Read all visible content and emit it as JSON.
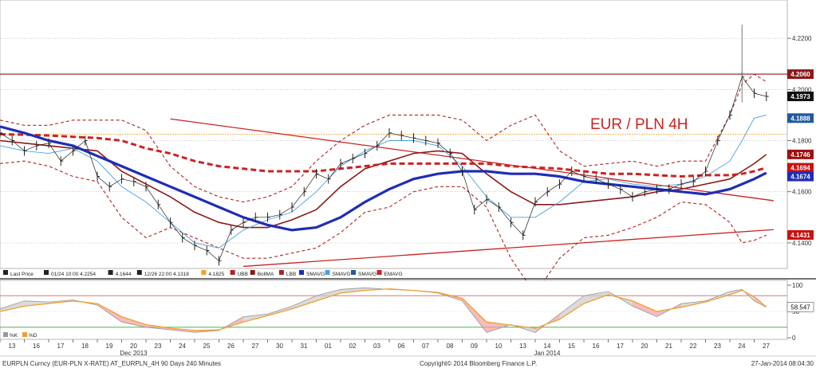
{
  "footer": {
    "left": "EURPLN Curncy (EUR-PLN X-RATE) AT_EURPLN_4H 90 Days 240 Minutes",
    "center": "Copyright© 2014 Bloomberg Finance L.P.",
    "right": "27-Jan-2014 08:04:30"
  },
  "chart_data": [
    {
      "type": "line",
      "panel": "price",
      "annotation": "EUR / PLN 4H",
      "ylim": [
        4.13,
        4.235
      ],
      "y_ticks": [
        "4.2200",
        "4.2000",
        "4.1800",
        "4.1600",
        "4.1400"
      ],
      "y_tick_values": [
        4.22,
        4.2,
        4.18,
        4.16,
        4.14
      ],
      "x_ticks": [
        "13",
        "16",
        "17",
        "18",
        "19",
        "20",
        "23",
        "24",
        "25",
        "26",
        "27",
        "30",
        "31",
        "01",
        "02",
        "03",
        "06",
        "07",
        "08",
        "09",
        "10",
        "13",
        "14",
        "15",
        "16",
        "17",
        "20",
        "21",
        "22",
        "23",
        "24",
        "27"
      ],
      "month_labels": [
        {
          "label": "Dec 2013",
          "at": "20"
        },
        {
          "label": "Jan 2014",
          "at": "14"
        }
      ],
      "legend": [
        {
          "label": "Last Price",
          "color": "#222222"
        },
        {
          "label": "01/24 10:00 4.2254",
          "color": "#222222"
        },
        {
          "label": "4.1644",
          "color": "#222222"
        },
        {
          "label": "12/26 22:00 4.1318",
          "color": "#222222"
        },
        {
          "label": "4.1825",
          "color": "#f0a030"
        },
        {
          "label": "UBB",
          "color": "#b22222"
        },
        {
          "label": "BollMA",
          "color": "#8b1a1a"
        },
        {
          "label": "LBB",
          "color": "#b22222"
        },
        {
          "label": "SMAVG",
          "color": "#1f2db5"
        },
        {
          "label": "SMAVG",
          "color": "#4aa0e0"
        },
        {
          "label": "SMAVG",
          "color": "#1f5aa0"
        },
        {
          "label": "EMAVG",
          "color": "#cc2222"
        }
      ],
      "price_labels": [
        {
          "text": "4.2060",
          "value": 4.206,
          "color": "#8b1a1a"
        },
        {
          "text": "4.1973",
          "value": 4.1973,
          "color": "#111111"
        },
        {
          "text": "4.1888",
          "value": 4.1888,
          "color": "#1f5aa0"
        },
        {
          "text": "4.1746",
          "value": 4.1746,
          "color": "#a01010"
        },
        {
          "text": "4.1694",
          "value": 4.1694,
          "color": "#cc1111"
        },
        {
          "text": "4.1674",
          "value": 4.1674,
          "color": "#1f2db5"
        },
        {
          "text": "4.1431",
          "value": 4.1431,
          "color": "#cc1111"
        }
      ],
      "horizontal_lines": [
        {
          "value": 4.206,
          "color": "#8b1a1a"
        },
        {
          "value": 4.1825,
          "color": "#f0a030"
        }
      ],
      "trendlines": [
        {
          "from_x": 7.0,
          "from_y": 4.1885,
          "to_x": 31.8,
          "to_y": 4.1565,
          "color": "#cc2222"
        },
        {
          "from_x": 10.0,
          "from_y": 4.1308,
          "to_x": 31.8,
          "to_y": 4.1452,
          "color": "#cc2222"
        }
      ],
      "series": [
        {
          "name": "Last Price",
          "color": "#222222",
          "x": [
            -0.4,
            0,
            0.5,
            1,
            1.5,
            2,
            2.5,
            3,
            3.5,
            4,
            4.5,
            5,
            5.5,
            6,
            6.5,
            7,
            7.5,
            8,
            8.5,
            9,
            9.5,
            10,
            10.5,
            11,
            11.5,
            12,
            12.5,
            13,
            13.5,
            14,
            14.5,
            15,
            15.5,
            16,
            16.5,
            17,
            17.5,
            18,
            18.5,
            19,
            19.5,
            20,
            20.5,
            21,
            21.5,
            22,
            22.5,
            23,
            23.5,
            24,
            24.5,
            25,
            25.5,
            26,
            26.5,
            27,
            27.5,
            28,
            28.5,
            29,
            29.5,
            30,
            30.5,
            31,
            31.5
          ],
          "values": [
            4.181,
            4.183,
            4.18,
            4.176,
            4.178,
            4.179,
            4.172,
            4.176,
            4.18,
            4.166,
            4.162,
            4.165,
            4.164,
            4.162,
            4.155,
            4.148,
            4.142,
            4.139,
            4.137,
            4.133,
            4.145,
            4.148,
            4.15,
            4.15,
            4.151,
            4.154,
            4.16,
            4.167,
            4.165,
            4.171,
            4.173,
            4.175,
            4.178,
            4.183,
            4.182,
            4.181,
            4.18,
            4.179,
            4.175,
            4.168,
            4.153,
            4.157,
            4.154,
            4.148,
            4.143,
            4.156,
            4.16,
            4.163,
            4.168,
            4.166,
            4.165,
            4.163,
            4.161,
            4.158,
            4.16,
            4.161,
            4.161,
            4.163,
            4.164,
            4.168,
            4.18,
            4.19,
            4.205,
            4.1985,
            4.1973
          ]
        },
        {
          "name": "UBB",
          "color": "#b22222",
          "x": [
            0,
            1,
            2,
            3,
            4,
            5,
            6,
            7,
            8,
            9,
            10,
            11,
            12,
            13,
            14,
            15,
            16,
            17,
            18,
            19,
            20,
            21,
            22,
            23,
            24,
            25,
            26,
            27,
            28,
            29,
            30,
            30.5,
            31,
            31.5
          ],
          "values": [
            4.188,
            4.186,
            4.186,
            4.188,
            4.188,
            4.188,
            4.184,
            4.17,
            4.162,
            4.158,
            4.156,
            4.158,
            4.162,
            4.172,
            4.18,
            4.186,
            4.19,
            4.19,
            4.19,
            4.188,
            4.18,
            4.186,
            4.19,
            4.176,
            4.17,
            4.171,
            4.172,
            4.17,
            4.172,
            4.172,
            4.19,
            4.202,
            4.206,
            4.203
          ]
        },
        {
          "name": "BollMA",
          "color": "#8b1a1a",
          "x": [
            0,
            1,
            2,
            3,
            4,
            5,
            6,
            7,
            8,
            9,
            10,
            11,
            12,
            13,
            14,
            15,
            16,
            17,
            18,
            19,
            20,
            21,
            22,
            23,
            24,
            25,
            26,
            27,
            28,
            29,
            30,
            30.5,
            31,
            31.5
          ],
          "values": [
            4.18,
            4.179,
            4.178,
            4.177,
            4.176,
            4.168,
            4.163,
            4.158,
            4.152,
            4.148,
            4.146,
            4.146,
            4.149,
            4.153,
            4.162,
            4.169,
            4.172,
            4.175,
            4.176,
            4.175,
            4.167,
            4.16,
            4.155,
            4.155,
            4.156,
            4.157,
            4.158,
            4.16,
            4.161,
            4.163,
            4.165,
            4.168,
            4.171,
            4.1746
          ]
        },
        {
          "name": "LBB",
          "color": "#b22222",
          "x": [
            0,
            1,
            2,
            3,
            4,
            5,
            6,
            7,
            8,
            9,
            10,
            11,
            12,
            13,
            14,
            15,
            16,
            17,
            18,
            19,
            20,
            21,
            22,
            23,
            24,
            25,
            26,
            27,
            28,
            29,
            30,
            30.5,
            31,
            31.5
          ],
          "values": [
            4.171,
            4.172,
            4.17,
            4.166,
            4.164,
            4.15,
            4.142,
            4.146,
            4.142,
            4.138,
            4.134,
            4.134,
            4.136,
            4.138,
            4.144,
            4.152,
            4.154,
            4.16,
            4.162,
            4.162,
            4.154,
            4.134,
            4.12,
            4.134,
            4.142,
            4.143,
            4.146,
            4.15,
            4.156,
            4.155,
            4.148,
            4.14,
            4.141,
            4.143
          ]
        },
        {
          "name": "SMAVG",
          "color": "#1f2db5",
          "x": [
            0,
            1,
            2,
            3,
            4,
            5,
            6,
            7,
            8,
            9,
            10,
            11,
            12,
            13,
            14,
            15,
            16,
            17,
            18,
            19,
            20,
            21,
            22,
            23,
            24,
            25,
            26,
            27,
            28,
            29,
            30,
            30.5,
            31,
            31.5
          ],
          "values": [
            4.1855,
            4.183,
            4.18,
            4.178,
            4.174,
            4.17,
            4.166,
            4.162,
            4.158,
            4.154,
            4.15,
            4.147,
            4.145,
            4.146,
            4.15,
            4.156,
            4.161,
            4.165,
            4.167,
            4.168,
            4.168,
            4.167,
            4.167,
            4.166,
            4.164,
            4.163,
            4.162,
            4.161,
            4.16,
            4.159,
            4.161,
            4.163,
            4.165,
            4.1674
          ]
        },
        {
          "name": "SMAVG",
          "color": "#4aa0e0",
          "x": [
            0,
            1,
            2,
            3,
            4,
            5,
            6,
            7,
            8,
            9,
            10,
            11,
            12,
            13,
            14,
            15,
            16,
            17,
            18,
            19,
            20,
            21,
            22,
            23,
            24,
            25,
            26,
            27,
            28,
            29,
            30,
            30.5,
            31,
            31.5
          ],
          "values": [
            4.178,
            4.176,
            4.175,
            4.177,
            4.172,
            4.162,
            4.156,
            4.148,
            4.14,
            4.138,
            4.145,
            4.149,
            4.152,
            4.16,
            4.17,
            4.176,
            4.18,
            4.18,
            4.178,
            4.17,
            4.158,
            4.15,
            4.15,
            4.156,
            4.164,
            4.165,
            4.163,
            4.162,
            4.163,
            4.166,
            4.172,
            4.18,
            4.1888,
            4.19
          ]
        },
        {
          "name": "EMAVG",
          "color": "#cc2222",
          "x": [
            0,
            1,
            2,
            3,
            4,
            5,
            6,
            7,
            8,
            9,
            10,
            11,
            12,
            13,
            14,
            15,
            16,
            17,
            18,
            19,
            20,
            21,
            22,
            23,
            24,
            25,
            26,
            27,
            28,
            29,
            30,
            30.5,
            31,
            31.5
          ],
          "values": [
            4.1825,
            4.1823,
            4.182,
            4.1815,
            4.181,
            4.18,
            4.177,
            4.175,
            4.172,
            4.17,
            4.169,
            4.168,
            4.168,
            4.168,
            4.169,
            4.17,
            4.171,
            4.171,
            4.171,
            4.171,
            4.171,
            4.17,
            4.1695,
            4.169,
            4.168,
            4.167,
            4.167,
            4.1665,
            4.166,
            4.1665,
            4.1665,
            4.167,
            4.168,
            4.1694
          ]
        }
      ]
    },
    {
      "type": "line",
      "panel": "oscillator",
      "ylim": [
        0,
        100
      ],
      "y_ticks": [
        "100",
        "50",
        "0"
      ],
      "y_tick_values": [
        100,
        50,
        0
      ],
      "last_value_label": "58.547",
      "horizontal_lines": [
        {
          "value": 80,
          "color": "#cc6666"
        },
        {
          "value": 20,
          "color": "#33aa33"
        }
      ],
      "legend": [
        {
          "label": "%K",
          "color": "#999999"
        },
        {
          "label": "%D",
          "color": "#f0a030"
        }
      ],
      "series": [
        {
          "name": "%K",
          "color": "#999999",
          "x": [
            0,
            1,
            2,
            3,
            4,
            5,
            6,
            7,
            8,
            9,
            10,
            11,
            12,
            13,
            14,
            15,
            16,
            17,
            18,
            19,
            20,
            21,
            22,
            23,
            24,
            25,
            26,
            27,
            28,
            29,
            30,
            30.5,
            31,
            31.5
          ],
          "values": [
            55,
            70,
            68,
            72,
            62,
            30,
            20,
            15,
            10,
            14,
            40,
            45,
            60,
            80,
            92,
            95,
            92,
            90,
            85,
            70,
            10,
            25,
            10,
            45,
            80,
            88,
            60,
            40,
            65,
            70,
            88,
            92,
            70,
            58
          ]
        },
        {
          "name": "%D",
          "color": "#f0a030",
          "x": [
            0,
            1,
            2,
            3,
            4,
            5,
            6,
            7,
            8,
            9,
            10,
            11,
            12,
            13,
            14,
            15,
            16,
            17,
            18,
            19,
            20,
            21,
            22,
            23,
            24,
            25,
            26,
            27,
            28,
            29,
            30,
            30.5,
            31,
            31.5
          ],
          "values": [
            50,
            60,
            65,
            70,
            65,
            40,
            25,
            18,
            14,
            15,
            30,
            42,
            55,
            70,
            85,
            90,
            93,
            90,
            86,
            75,
            30,
            24,
            18,
            35,
            65,
            82,
            70,
            50,
            58,
            68,
            82,
            90,
            78,
            58.547
          ]
        }
      ]
    }
  ]
}
